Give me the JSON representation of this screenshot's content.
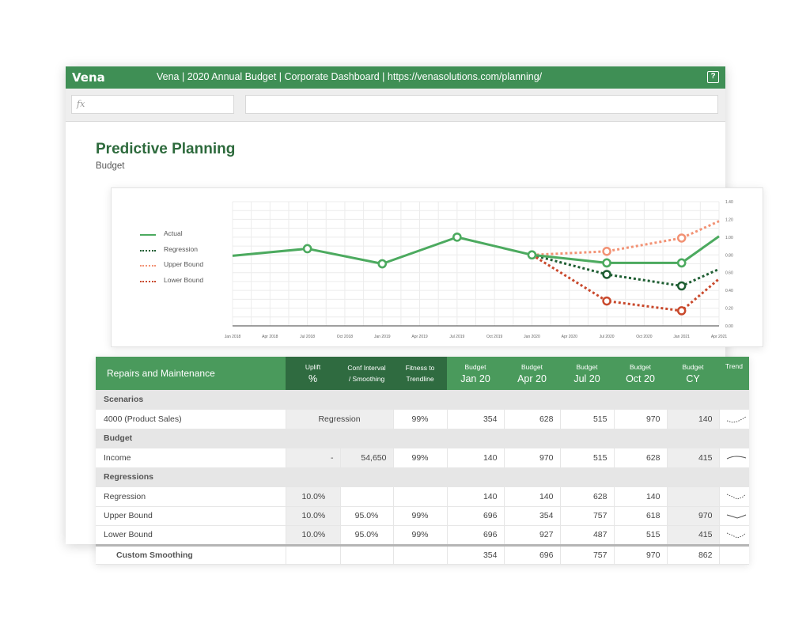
{
  "app": {
    "logo": "Vena",
    "title": "Vena | 2020 Annual Budget | Corporate Dashboard | https://venasolutions.com/planning/",
    "help_label": "?",
    "formula_placeholder": "fx"
  },
  "page": {
    "title": "Predictive Planning",
    "subtitle": "Budget"
  },
  "chart_data": {
    "type": "line",
    "x": [
      "Jan 2018",
      "Apr 2018",
      "Jul 2018",
      "Oct 2018",
      "Jan 2019",
      "Apr 2019",
      "Jul 2019",
      "Oct 2019",
      "Jan 2020",
      "Apr 2020",
      "Jul 2020",
      "Oct 2020",
      "Jan 2021",
      "Apr 2021"
    ],
    "ylim": [
      0,
      1.4
    ],
    "yticks": [
      "1.40",
      "1.20",
      "1.00",
      "0.80",
      "0.60",
      "0.40",
      "0.20",
      "0.00"
    ],
    "grid": true,
    "legend_position": "left",
    "series": [
      {
        "name": "Actual",
        "color": "#4caa5f",
        "style": "solid",
        "points": [
          [
            "Jan 2018",
            0.79
          ],
          [
            "Jul 2018",
            0.87
          ],
          [
            "Jan 2019",
            0.7
          ],
          [
            "Jul 2019",
            1.0
          ],
          [
            "Jan 2020",
            0.8
          ],
          [
            "Jul 2020",
            0.71
          ],
          [
            "Jan 2021",
            0.71
          ],
          [
            "Apr 2021",
            1.01
          ]
        ],
        "markers": [
          "Jul 2018",
          "Jan 2019",
          "Jul 2019",
          "Jan 2020",
          "Jul 2020",
          "Jan 2021"
        ]
      },
      {
        "name": "Regression",
        "color": "#1f5e33",
        "style": "dotted",
        "points": [
          [
            "Jan 2020",
            0.8
          ],
          [
            "Jul 2020",
            0.58
          ],
          [
            "Jan 2021",
            0.45
          ],
          [
            "Apr 2021",
            0.64
          ]
        ],
        "markers": [
          "Jul 2020",
          "Jan 2021"
        ]
      },
      {
        "name": "Upper Bound",
        "color": "#f29274",
        "style": "dotted",
        "points": [
          [
            "Jan 2020",
            0.8
          ],
          [
            "Jul 2020",
            0.84
          ],
          [
            "Jan 2021",
            0.99
          ],
          [
            "Apr 2021",
            1.18
          ]
        ],
        "markers": [
          "Jul 2020",
          "Jan 2021"
        ]
      },
      {
        "name": "Lower Bound",
        "color": "#c9492c",
        "style": "dotted",
        "points": [
          [
            "Jan 2020",
            0.8
          ],
          [
            "Jul 2020",
            0.28
          ],
          [
            "Jan 2021",
            0.17
          ],
          [
            "Apr 2021",
            0.53
          ]
        ],
        "markers": [
          "Jul 2020",
          "Jan 2021"
        ]
      }
    ]
  },
  "table": {
    "header": {
      "name": "Repairs and Maintenance",
      "uplift_top": "Uplift",
      "uplift_bottom": "%",
      "conf_top": "Conf Interval",
      "conf_bottom": "/ Smoothing",
      "fit_top": "Fitness to",
      "fit_bottom": "Trendline",
      "b1_top": "Budget",
      "b1_bottom": "Jan 20",
      "b2_top": "Budget",
      "b2_bottom": "Apr 20",
      "b3_top": "Budget",
      "b3_bottom": "Jul 20",
      "b4_top": "Budget",
      "b4_bottom": "Oct 20",
      "b5_top": "Budget",
      "b5_bottom": "CY",
      "trend": "Trend"
    },
    "sections": {
      "scenarios": "Scenarios",
      "budget": "Budget",
      "regressions": "Regressions"
    },
    "rows": {
      "product_sales": {
        "name": "4000 (Product Sales)",
        "method": "Regression",
        "fit": "99%",
        "jan": "354",
        "apr": "628",
        "jul": "515",
        "oct": "970",
        "cy": "140"
      },
      "income": {
        "name": "Income",
        "uplift": "-",
        "conf": "54,650",
        "fit": "99%",
        "jan": "140",
        "apr": "970",
        "jul": "515",
        "oct": "628",
        "cy": "415"
      },
      "regression": {
        "name": "Regression",
        "uplift": "10.0%",
        "jan": "140",
        "apr": "140",
        "jul": "628",
        "oct": "140"
      },
      "upper": {
        "name": "Upper Bound",
        "uplift": "10.0%",
        "conf": "95.0%",
        "fit": "99%",
        "jan": "696",
        "apr": "354",
        "jul": "757",
        "oct": "618",
        "cy": "970"
      },
      "lower": {
        "name": "Lower Bound",
        "uplift": "10.0%",
        "conf": "95.0%",
        "fit": "99%",
        "jan": "696",
        "apr": "927",
        "jul": "487",
        "oct": "515",
        "cy": "415"
      },
      "custom": {
        "name": "Custom Smoothing",
        "jan": "354",
        "apr": "696",
        "jul": "757",
        "oct": "970",
        "cy": "862"
      }
    }
  }
}
